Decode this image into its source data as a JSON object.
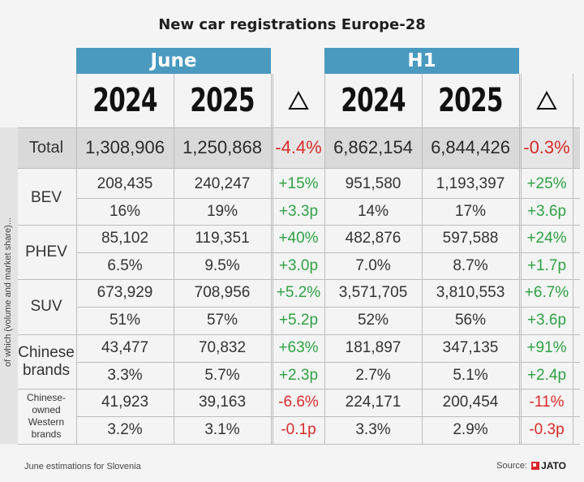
{
  "chart_data": {
    "type": "table",
    "title": "New car registrations Europe-28",
    "periods": [
      "June",
      "H1"
    ],
    "years": [
      "2024",
      "2025"
    ],
    "delta_symbol": "Δ",
    "side_label": "of which (volume and market share)...",
    "total": {
      "label": "Total",
      "values": [
        "1,308,906",
        "1,250,868",
        "-4.4%",
        "6,862,154",
        "6,844,426",
        "-0.3%"
      ]
    },
    "groups": [
      {
        "label": "BEV",
        "rows": [
          [
            "208,435",
            "240,247",
            "+15%",
            "951,580",
            "1,193,397",
            "+25%"
          ],
          [
            "16%",
            "19%",
            "+3.3p",
            "14%",
            "17%",
            "+3.6p"
          ]
        ]
      },
      {
        "label": "PHEV",
        "rows": [
          [
            "85,102",
            "119,351",
            "+40%",
            "482,876",
            "597,588",
            "+24%"
          ],
          [
            "6.5%",
            "9.5%",
            "+3.0p",
            "7.0%",
            "8.7%",
            "+1.7p"
          ]
        ]
      },
      {
        "label": "SUV",
        "rows": [
          [
            "673,929",
            "708,956",
            "+5.2%",
            "3,571,705",
            "3,810,553",
            "+6.7%"
          ],
          [
            "51%",
            "57%",
            "+5.2p",
            "52%",
            "56%",
            "+3.6p"
          ]
        ]
      },
      {
        "label": "Chinese brands",
        "rows": [
          [
            "43,477",
            "70,832",
            "+63%",
            "181,897",
            "347,135",
            "+91%"
          ],
          [
            "3.3%",
            "5.7%",
            "+2.3p",
            "2.7%",
            "5.1%",
            "+2.4p"
          ]
        ]
      },
      {
        "label": "Chinese-owned Western brands",
        "rows": [
          [
            "41,923",
            "39,163",
            "-6.6%",
            "224,171",
            "200,454",
            "-11%"
          ],
          [
            "3.2%",
            "3.1%",
            "-0.1p",
            "3.3%",
            "2.9%",
            "-0.3p"
          ]
        ]
      }
    ]
  },
  "footer": {
    "note": "June estimations for Slovenia",
    "source_label": "Source:",
    "source_brand": "JATO"
  }
}
